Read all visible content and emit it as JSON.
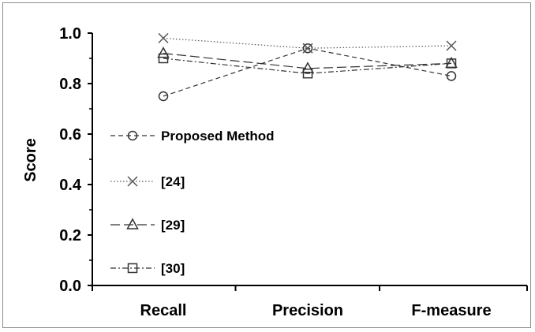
{
  "chart_data": {
    "type": "line",
    "title": "",
    "xlabel": "",
    "ylabel": "Score",
    "categories": [
      "Recall",
      "Precision",
      "F-measure"
    ],
    "ylim": [
      0.0,
      1.0
    ],
    "yticks": [
      "0.0",
      "0.2",
      "0.4",
      "0.6",
      "0.8",
      "1.0"
    ],
    "grid": false,
    "legend_position": "inside-left",
    "series": [
      {
        "name": "Proposed Method",
        "values": [
          0.75,
          0.94,
          0.83
        ],
        "marker": "circle",
        "dash": "dashed",
        "color": "#333333"
      },
      {
        "name": "[24]",
        "values": [
          0.98,
          0.94,
          0.95
        ],
        "marker": "x",
        "dash": "dotted",
        "color": "#555555"
      },
      {
        "name": "[29]",
        "values": [
          0.92,
          0.86,
          0.88
        ],
        "marker": "triangle",
        "dash": "long-dash",
        "color": "#333333"
      },
      {
        "name": "[30]",
        "values": [
          0.9,
          0.84,
          0.88
        ],
        "marker": "square",
        "dash": "dash-dot",
        "color": "#333333"
      }
    ]
  }
}
